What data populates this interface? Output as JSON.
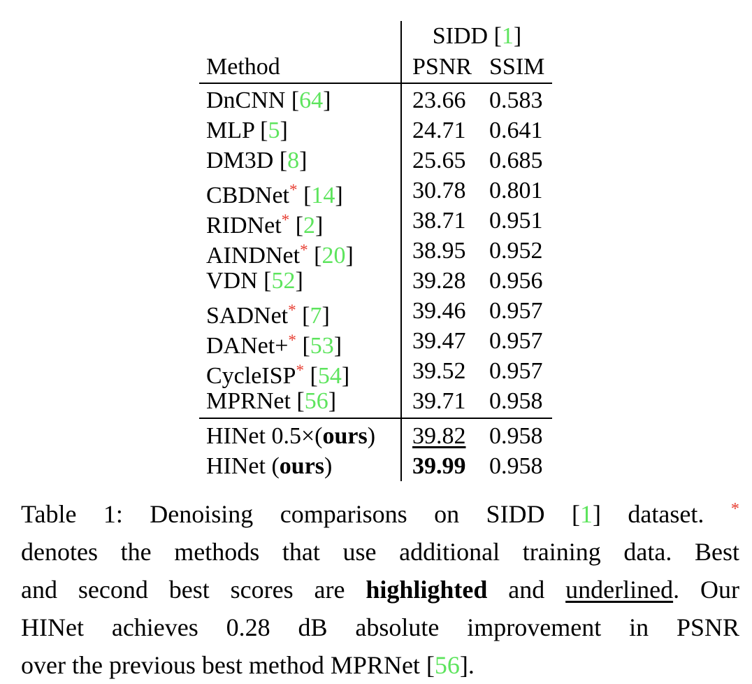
{
  "colors": {
    "background": "#ffffff",
    "text": "#000000",
    "rule": "#000000",
    "citation_green": "#5de45d",
    "star_red": "#e73c30"
  },
  "table": {
    "dataset_header": [
      {
        "t": "SIDD ["
      },
      {
        "t": "1",
        "s": "green"
      },
      {
        "t": "]"
      }
    ],
    "col_headers": {
      "method": "Method",
      "psnr": "PSNR",
      "ssim": "SSIM"
    },
    "rows": [
      {
        "method": [
          {
            "t": "DnCNN ["
          },
          {
            "t": "64",
            "s": "green"
          },
          {
            "t": "]"
          }
        ],
        "psnr": [
          {
            "t": "23.66"
          }
        ],
        "ssim": "0.583"
      },
      {
        "method": [
          {
            "t": "MLP ["
          },
          {
            "t": "5",
            "s": "green"
          },
          {
            "t": "]"
          }
        ],
        "psnr": [
          {
            "t": "24.71"
          }
        ],
        "ssim": "0.641"
      },
      {
        "method": [
          {
            "t": "DM3D ["
          },
          {
            "t": "8",
            "s": "green"
          },
          {
            "t": "]"
          }
        ],
        "psnr": [
          {
            "t": "25.65"
          }
        ],
        "ssim": "0.685"
      },
      {
        "method": [
          {
            "t": "CBDNet"
          },
          {
            "t": "*",
            "s": "redsup"
          },
          {
            "t": " ["
          },
          {
            "t": "14",
            "s": "green"
          },
          {
            "t": "]"
          }
        ],
        "psnr": [
          {
            "t": "30.78"
          }
        ],
        "ssim": "0.801"
      },
      {
        "method": [
          {
            "t": "RIDNet"
          },
          {
            "t": "*",
            "s": "redsup"
          },
          {
            "t": " ["
          },
          {
            "t": "2",
            "s": "green"
          },
          {
            "t": "]"
          }
        ],
        "psnr": [
          {
            "t": "38.71"
          }
        ],
        "ssim": "0.951"
      },
      {
        "method": [
          {
            "t": "AINDNet"
          },
          {
            "t": "*",
            "s": "redsup"
          },
          {
            "t": " ["
          },
          {
            "t": "20",
            "s": "green"
          },
          {
            "t": "]"
          }
        ],
        "psnr": [
          {
            "t": "38.95"
          }
        ],
        "ssim": "0.952"
      },
      {
        "method": [
          {
            "t": "VDN ["
          },
          {
            "t": "52",
            "s": "green"
          },
          {
            "t": "]"
          }
        ],
        "psnr": [
          {
            "t": "39.28"
          }
        ],
        "ssim": "0.956"
      },
      {
        "method": [
          {
            "t": "SADNet"
          },
          {
            "t": "*",
            "s": "redsup"
          },
          {
            "t": " ["
          },
          {
            "t": "7",
            "s": "green"
          },
          {
            "t": "]"
          }
        ],
        "psnr": [
          {
            "t": "39.46"
          }
        ],
        "ssim": "0.957"
      },
      {
        "method": [
          {
            "t": "DANet+"
          },
          {
            "t": "*",
            "s": "redsup"
          },
          {
            "t": " ["
          },
          {
            "t": "53",
            "s": "green"
          },
          {
            "t": "]"
          }
        ],
        "psnr": [
          {
            "t": "39.47"
          }
        ],
        "ssim": "0.957"
      },
      {
        "method": [
          {
            "t": "CycleISP"
          },
          {
            "t": "*",
            "s": "redsup"
          },
          {
            "t": " ["
          },
          {
            "t": "54",
            "s": "green"
          },
          {
            "t": "]"
          }
        ],
        "psnr": [
          {
            "t": "39.52"
          }
        ],
        "ssim": "0.957"
      },
      {
        "method": [
          {
            "t": "MPRNet ["
          },
          {
            "t": "56",
            "s": "green"
          },
          {
            "t": "]"
          }
        ],
        "psnr": [
          {
            "t": "39.71"
          }
        ],
        "ssim": "0.958"
      }
    ],
    "ours_rows": [
      {
        "method": [
          {
            "t": "HINet 0.5×("
          },
          {
            "t": "ours",
            "s": "bold"
          },
          {
            "t": ")"
          }
        ],
        "psnr": [
          {
            "t": "39.82",
            "s": "underline"
          }
        ],
        "ssim": "0.958"
      },
      {
        "method": [
          {
            "t": "HINet ("
          },
          {
            "t": "ours",
            "s": "bold"
          },
          {
            "t": ")"
          }
        ],
        "psnr": [
          {
            "t": "39.99",
            "s": "bold"
          }
        ],
        "ssim": "0.958"
      }
    ]
  },
  "caption": {
    "lines": [
      [
        {
          "t": "Table 1: Denoising comparisons on SIDD ["
        },
        {
          "t": "1",
          "s": "green"
        },
        {
          "t": "] dataset. "
        },
        {
          "t": "*",
          "s": "redsup"
        }
      ],
      [
        {
          "t": "denotes the methods that use additional training data. Best"
        }
      ],
      [
        {
          "t": "and second best scores are "
        },
        {
          "t": "highlighted",
          "s": "bold"
        },
        {
          "t": " and "
        },
        {
          "t": "underlined",
          "s": "underline"
        },
        {
          "t": ". Our"
        }
      ],
      [
        {
          "t": "HINet achieves 0.28 dB absolute improvement in PSNR"
        }
      ],
      [
        {
          "t": "over the previous best method MPRNet ["
        },
        {
          "t": "56",
          "s": "green"
        },
        {
          "t": "]."
        }
      ]
    ]
  }
}
